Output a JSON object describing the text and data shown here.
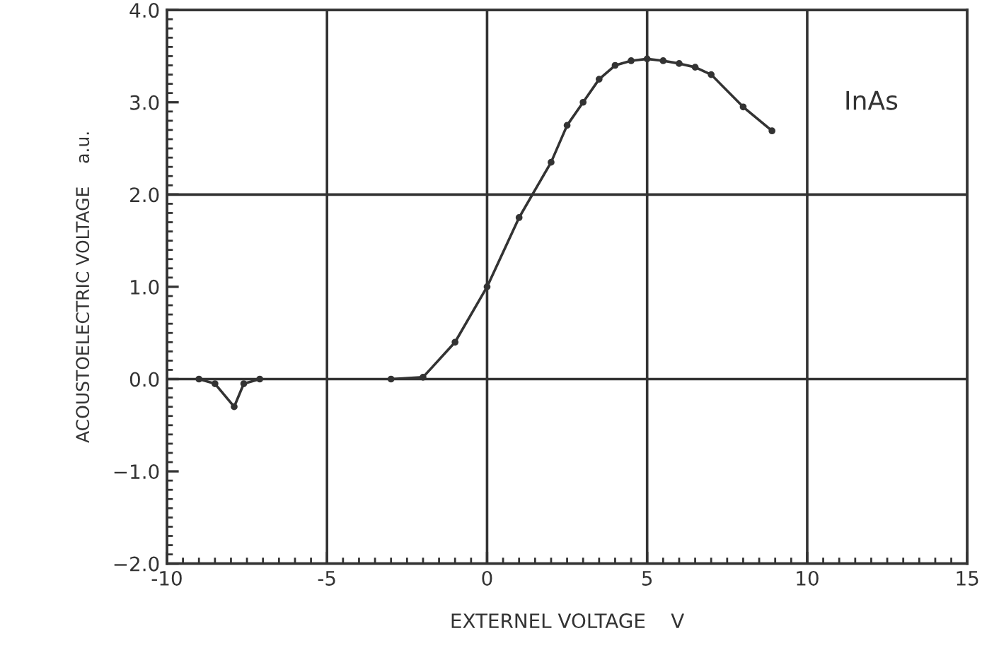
{
  "chart_data": {
    "type": "line",
    "xlabel": "EXTERNEL VOLTAGE    V",
    "ylabel": "ACOUSTOELECTRIC VOLTAGE    a.u.",
    "annotations": [
      "InAs"
    ],
    "x": [
      -9.0,
      -8.5,
      -7.9,
      -7.6,
      -7.1,
      -5,
      -3.0,
      -2.0,
      -1.0,
      0.0,
      1.0,
      2.0,
      2.5,
      3.0,
      3.5,
      4.0,
      4.5,
      5.0,
      5.5,
      6.0,
      6.5,
      7.0,
      8.0,
      8.9
    ],
    "series": [
      {
        "color": "#333333",
        "values": [
          0.0,
          -0.05,
          -0.3,
          -0.05,
          0.0,
          null,
          0.0,
          0.02,
          0.4,
          1.0,
          1.75,
          2.35,
          2.75,
          3.0,
          3.25,
          3.4,
          3.45,
          3.47,
          3.45,
          3.42,
          3.38,
          3.3,
          2.95,
          2.69
        ]
      }
    ],
    "marker": "circle",
    "line_style": "solid",
    "xlim": [
      -10,
      15
    ],
    "xticks": [
      -10,
      -5,
      0,
      5,
      10,
      15
    ],
    "ylim": [
      -2,
      4
    ],
    "yticks": [
      {
        "value": -2,
        "label": "−2.0"
      },
      {
        "value": -1,
        "label": "−1.0"
      },
      {
        "value": 0,
        "label": "0.0"
      },
      {
        "value": 1,
        "label": "1.0"
      },
      {
        "value": 2,
        "label": "2.0"
      },
      {
        "value": 3,
        "label": "3.0"
      },
      {
        "value": 4,
        "label": "4.0"
      }
    ],
    "grid": "x",
    "ref_lines": [
      {
        "axis": "y",
        "value": 0.0
      },
      {
        "axis": "y",
        "value": 2.0
      }
    ]
  }
}
